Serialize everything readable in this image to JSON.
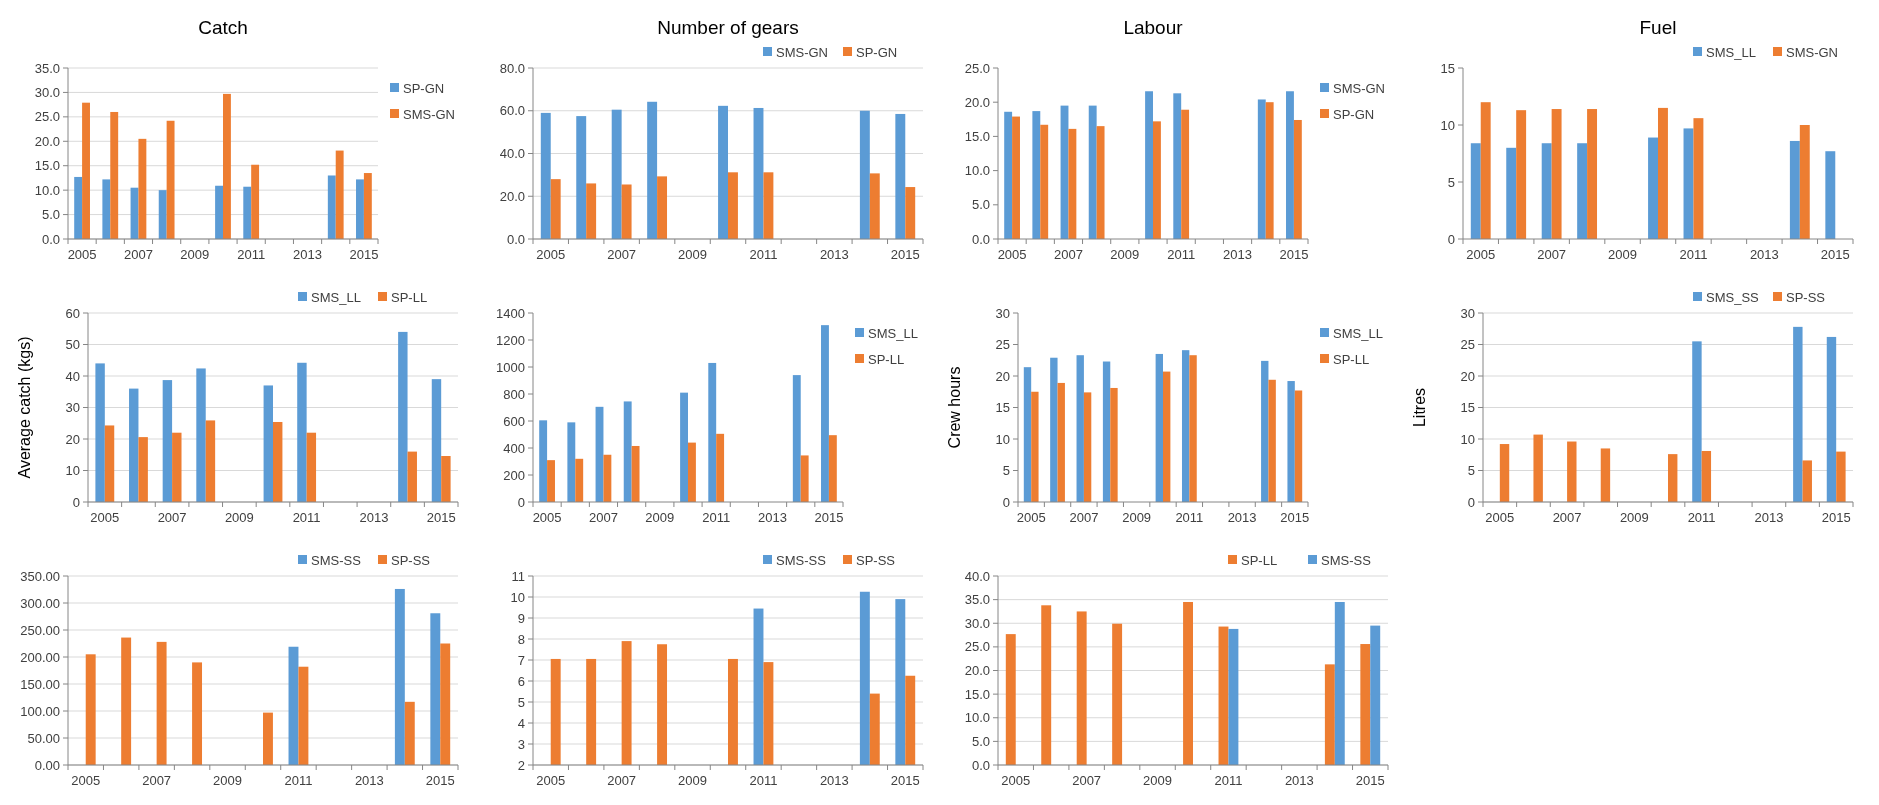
{
  "chart_data": [
    {
      "type": "bar",
      "title": "Catch",
      "categories": [
        "2005",
        null,
        "2007",
        null,
        "2009",
        null,
        "2011",
        null,
        "2013",
        null,
        "2015"
      ],
      "ylim": [
        0,
        35
      ],
      "yticks": [
        {
          "value": 0,
          "label": "0.0"
        },
        {
          "value": 5,
          "label": "5.0"
        },
        {
          "value": 10,
          "label": "10.0"
        },
        {
          "value": 15,
          "label": "15.0"
        },
        {
          "value": 20,
          "label": "20.0"
        },
        {
          "value": 25,
          "label": "25.0"
        },
        {
          "value": 30,
          "label": "30.0"
        },
        {
          "value": 35,
          "label": "35.0"
        }
      ],
      "grid": "y",
      "legend": "right",
      "series": [
        {
          "name": "SP-GN",
          "color": "#5b9bd5",
          "values": [
            12.7,
            12.2,
            10.5,
            10.0,
            null,
            10.9,
            10.7,
            null,
            null,
            13.0,
            12.2
          ]
        },
        {
          "name": "SMS-GN",
          "color": "#ed7d31",
          "values": [
            27.9,
            26.0,
            20.5,
            24.2,
            null,
            29.7,
            15.2,
            null,
            null,
            18.1,
            13.5
          ]
        }
      ]
    },
    {
      "type": "bar",
      "title": "Number of gears",
      "categories": [
        "2005",
        null,
        "2007",
        null,
        "2009",
        null,
        "2011",
        null,
        "2013",
        null,
        "2015"
      ],
      "ylim": [
        0,
        80
      ],
      "yticks": [
        {
          "value": 0,
          "label": "0.0"
        },
        {
          "value": 20,
          "label": "20.0"
        },
        {
          "value": 40,
          "label": "40.0"
        },
        {
          "value": 60,
          "label": "60.0"
        },
        {
          "value": 80,
          "label": "80.0"
        }
      ],
      "grid": "y",
      "legend": "top",
      "series": [
        {
          "name": "SMS-GN",
          "color": "#5b9bd5",
          "values": [
            59,
            57.5,
            60.5,
            64.2,
            null,
            62.3,
            61.3,
            null,
            null,
            60,
            58.5
          ]
        },
        {
          "name": "SP-GN",
          "color": "#ed7d31",
          "values": [
            28,
            26,
            25.5,
            29.3,
            null,
            31.2,
            31.2,
            null,
            null,
            30.7,
            24.3
          ]
        }
      ]
    },
    {
      "type": "bar",
      "title": "Labour",
      "categories": [
        "2005",
        null,
        "2007",
        null,
        "2009",
        null,
        "2011",
        null,
        "2013",
        null,
        "2015"
      ],
      "ylim": [
        0,
        25
      ],
      "yticks": [
        {
          "value": 0,
          "label": "0.0"
        },
        {
          "value": 5,
          "label": "5.0"
        },
        {
          "value": 10,
          "label": "10.0"
        },
        {
          "value": 15,
          "label": "15.0"
        },
        {
          "value": 20,
          "label": "20.0"
        },
        {
          "value": 25,
          "label": "25.0"
        }
      ],
      "legend": "right",
      "series": [
        {
          "name": "SMS-GN",
          "color": "#5b9bd5",
          "values": [
            18.6,
            18.7,
            19.5,
            19.5,
            null,
            21.6,
            21.3,
            null,
            null,
            20.4,
            21.6
          ]
        },
        {
          "name": "SP-GN",
          "color": "#ed7d31",
          "values": [
            17.9,
            16.7,
            16.1,
            16.5,
            null,
            17.2,
            18.9,
            null,
            null,
            20.0,
            17.4
          ]
        }
      ]
    },
    {
      "type": "bar",
      "title": "Fuel",
      "categories": [
        "2005",
        null,
        "2007",
        null,
        "2009",
        null,
        "2011",
        null,
        "2013",
        null,
        "2015"
      ],
      "ylim": [
        0,
        15
      ],
      "yticks": [
        0,
        5,
        10,
        15
      ],
      "legend": "top",
      "series": [
        {
          "name": "SMS_LL",
          "color": "#5b9bd5",
          "values": [
            8.4,
            8.0,
            8.4,
            8.4,
            null,
            8.9,
            9.7,
            null,
            null,
            8.6,
            7.7
          ]
        },
        {
          "name": "SMS-GN",
          "color": "#ed7d31",
          "values": [
            12.0,
            11.3,
            11.4,
            11.4,
            null,
            11.5,
            10.6,
            null,
            null,
            10.0,
            null
          ]
        }
      ]
    },
    {
      "type": "bar",
      "ylabel": "Average catch (kgs)",
      "categories": [
        "2005",
        null,
        "2007",
        null,
        "2009",
        null,
        "2011",
        null,
        "2013",
        null,
        "2015"
      ],
      "ylim": [
        0,
        60
      ],
      "yticks": [
        0,
        10,
        20,
        30,
        40,
        50,
        60
      ],
      "grid": "y",
      "legend": "top",
      "series": [
        {
          "name": "SMS_LL",
          "color": "#5b9bd5",
          "values": [
            44,
            36,
            38.7,
            42.4,
            null,
            37,
            44.2,
            null,
            null,
            54,
            39
          ]
        },
        {
          "name": "SP-LL",
          "color": "#ed7d31",
          "values": [
            24.3,
            20.6,
            22,
            25.9,
            null,
            25.4,
            22,
            null,
            null,
            16,
            14.6
          ]
        }
      ]
    },
    {
      "type": "bar",
      "categories": [
        "2005",
        null,
        "2007",
        null,
        "2009",
        null,
        "2011",
        null,
        "2013",
        null,
        "2015"
      ],
      "ylim": [
        0,
        1400
      ],
      "yticks": [
        0,
        200,
        400,
        600,
        800,
        1000,
        1200,
        1400
      ],
      "legend": "right",
      "series": [
        {
          "name": "SMS_LL",
          "color": "#5b9bd5",
          "values": [
            605,
            590,
            705,
            745,
            null,
            810,
            1030,
            null,
            null,
            940,
            1310
          ]
        },
        {
          "name": "SP-LL",
          "color": "#ed7d31",
          "values": [
            310,
            320,
            350,
            415,
            null,
            440,
            505,
            null,
            null,
            345,
            495
          ]
        }
      ]
    },
    {
      "type": "bar",
      "ylabel": "Crew hours",
      "categories": [
        "2005",
        null,
        "2007",
        null,
        "2009",
        null,
        "2011",
        null,
        "2013",
        null,
        "2015"
      ],
      "ylim": [
        0,
        30
      ],
      "yticks": [
        0,
        5,
        10,
        15,
        20,
        25,
        30
      ],
      "legend": "right",
      "series": [
        {
          "name": "SMS_LL",
          "color": "#5b9bd5",
          "values": [
            21.4,
            22.9,
            23.3,
            22.3,
            null,
            23.5,
            24.1,
            null,
            null,
            22.4,
            19.2
          ]
        },
        {
          "name": "SP-LL",
          "color": "#ed7d31",
          "values": [
            17.5,
            18.9,
            17.4,
            18.1,
            null,
            20.7,
            23.3,
            null,
            null,
            19.4,
            17.7
          ]
        }
      ]
    },
    {
      "type": "bar",
      "ylabel": "Litres",
      "categories": [
        "2005",
        null,
        "2007",
        null,
        "2009",
        null,
        "2011",
        null,
        "2013",
        null,
        "2015"
      ],
      "ylim": [
        0,
        30
      ],
      "yticks": [
        0,
        5,
        10,
        15,
        20,
        25,
        30
      ],
      "grid": "y",
      "legend": "top",
      "series": [
        {
          "name": "SMS_SS",
          "color": "#5b9bd5",
          "values": [
            null,
            null,
            null,
            null,
            null,
            null,
            25.5,
            null,
            null,
            27.8,
            26.2
          ]
        },
        {
          "name": "SP-SS",
          "color": "#ed7d31",
          "values": [
            9.2,
            10.7,
            9.6,
            8.5,
            null,
            7.6,
            8.1,
            null,
            null,
            6.6,
            8.0
          ]
        }
      ]
    },
    {
      "type": "bar",
      "categories": [
        "2005",
        null,
        "2007",
        null,
        "2009",
        null,
        "2011",
        null,
        "2013",
        null,
        "2015"
      ],
      "ylim": [
        0,
        350
      ],
      "yticks": [
        {
          "value": 0,
          "label": "0.00"
        },
        {
          "value": 50,
          "label": "50.00"
        },
        {
          "value": 100,
          "label": "100.00"
        },
        {
          "value": 150,
          "label": "150.00"
        },
        {
          "value": 200,
          "label": "200.00"
        },
        {
          "value": 250,
          "label": "250.00"
        },
        {
          "value": 300,
          "label": "300.00"
        },
        {
          "value": 350,
          "label": "350.00"
        }
      ],
      "grid": "y",
      "legend": "top",
      "series": [
        {
          "name": "SMS-SS",
          "color": "#5b9bd5",
          "values": [
            null,
            null,
            null,
            null,
            null,
            null,
            219,
            null,
            null,
            326,
            281
          ]
        },
        {
          "name": "SP-SS",
          "color": "#ed7d31",
          "values": [
            205,
            236,
            228,
            190,
            null,
            97,
            182,
            null,
            null,
            117,
            225
          ]
        }
      ]
    },
    {
      "type": "bar",
      "categories": [
        "2005",
        null,
        "2007",
        null,
        "2009",
        null,
        "2011",
        null,
        "2013",
        null,
        "2015"
      ],
      "ylim": [
        2,
        11
      ],
      "yticks": [
        2,
        3,
        4,
        5,
        6,
        7,
        8,
        9,
        10,
        11
      ],
      "grid": "y",
      "legend": "top",
      "series": [
        {
          "name": "SMS-SS",
          "color": "#5b9bd5",
          "values": [
            null,
            null,
            null,
            null,
            null,
            null,
            9.45,
            null,
            null,
            10.25,
            9.9
          ]
        },
        {
          "name": "SP-SS",
          "color": "#ed7d31",
          "values": [
            7.05,
            7.05,
            7.9,
            7.75,
            null,
            7.05,
            6.9,
            null,
            null,
            5.4,
            6.25
          ]
        }
      ]
    },
    {
      "type": "bar",
      "categories": [
        "2005",
        null,
        "2007",
        null,
        "2009",
        null,
        "2011",
        null,
        "2013",
        null,
        "2015"
      ],
      "ylim": [
        0,
        40
      ],
      "yticks": [
        {
          "value": 0,
          "label": "0.0"
        },
        {
          "value": 5,
          "label": "5.0"
        },
        {
          "value": 10,
          "label": "10.0"
        },
        {
          "value": 15,
          "label": "15.0"
        },
        {
          "value": 20,
          "label": "20.0"
        },
        {
          "value": 25,
          "label": "25.0"
        },
        {
          "value": 30,
          "label": "30.0"
        },
        {
          "value": 35,
          "label": "35.0"
        },
        {
          "value": 40,
          "label": "40.0"
        }
      ],
      "grid": "y",
      "legend": "top",
      "series": [
        {
          "name": "SP-LL",
          "color": "#ed7d31",
          "values": [
            27.7,
            33.8,
            32.5,
            29.9,
            null,
            34.5,
            29.3,
            null,
            null,
            21.3,
            25.6
          ]
        },
        {
          "name": "SMS-SS",
          "color": "#5b9bd5",
          "values": [
            null,
            null,
            null,
            null,
            null,
            null,
            28.8,
            null,
            null,
            34.5,
            29.5
          ]
        }
      ]
    }
  ]
}
